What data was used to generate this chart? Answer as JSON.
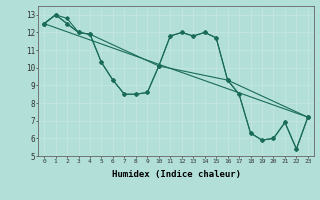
{
  "xlabel": "Humidex (Indice chaleur)",
  "xlim": [
    -0.5,
    23.5
  ],
  "ylim": [
    5,
    13.5
  ],
  "xticks": [
    0,
    1,
    2,
    3,
    4,
    5,
    6,
    7,
    8,
    9,
    10,
    11,
    12,
    13,
    14,
    15,
    16,
    17,
    18,
    19,
    20,
    21,
    22,
    23
  ],
  "yticks": [
    5,
    6,
    7,
    8,
    9,
    10,
    11,
    12,
    13
  ],
  "bg_color": "#b2e0d8",
  "grid_color": "#c8e8e2",
  "line_color": "#1a6b5a",
  "series1_x": [
    0,
    1,
    2,
    3,
    4,
    5,
    6,
    7,
    8,
    9,
    10,
    11,
    12,
    13,
    14,
    15,
    16,
    17,
    18,
    19,
    20,
    21,
    22,
    23
  ],
  "series1_y": [
    12.5,
    13.0,
    12.8,
    12.0,
    11.9,
    10.3,
    9.3,
    8.5,
    8.5,
    8.6,
    10.1,
    11.8,
    12.0,
    11.8,
    12.0,
    11.7,
    9.3,
    8.5,
    6.3,
    5.9,
    6.0,
    6.9,
    5.4,
    7.2
  ],
  "series2_x": [
    0,
    1,
    2,
    3,
    4,
    5,
    6,
    7,
    8,
    9,
    10,
    16,
    17,
    18,
    19,
    20,
    21,
    22,
    23
  ],
  "series2_y": [
    12.5,
    13.0,
    12.5,
    12.0,
    11.9,
    10.3,
    9.3,
    8.5,
    8.5,
    8.6,
    10.1,
    9.3,
    8.5,
    6.3,
    5.9,
    6.0,
    6.9,
    5.4,
    7.2
  ],
  "series3_x": [
    0,
    1,
    2,
    3,
    4,
    10,
    11,
    12,
    13,
    14,
    15,
    16,
    23
  ],
  "series3_y": [
    12.5,
    13.0,
    12.5,
    12.0,
    11.9,
    10.1,
    11.8,
    12.0,
    11.8,
    12.0,
    11.7,
    9.3,
    7.2
  ],
  "series4_x": [
    0,
    23
  ],
  "series4_y": [
    12.5,
    7.2
  ]
}
